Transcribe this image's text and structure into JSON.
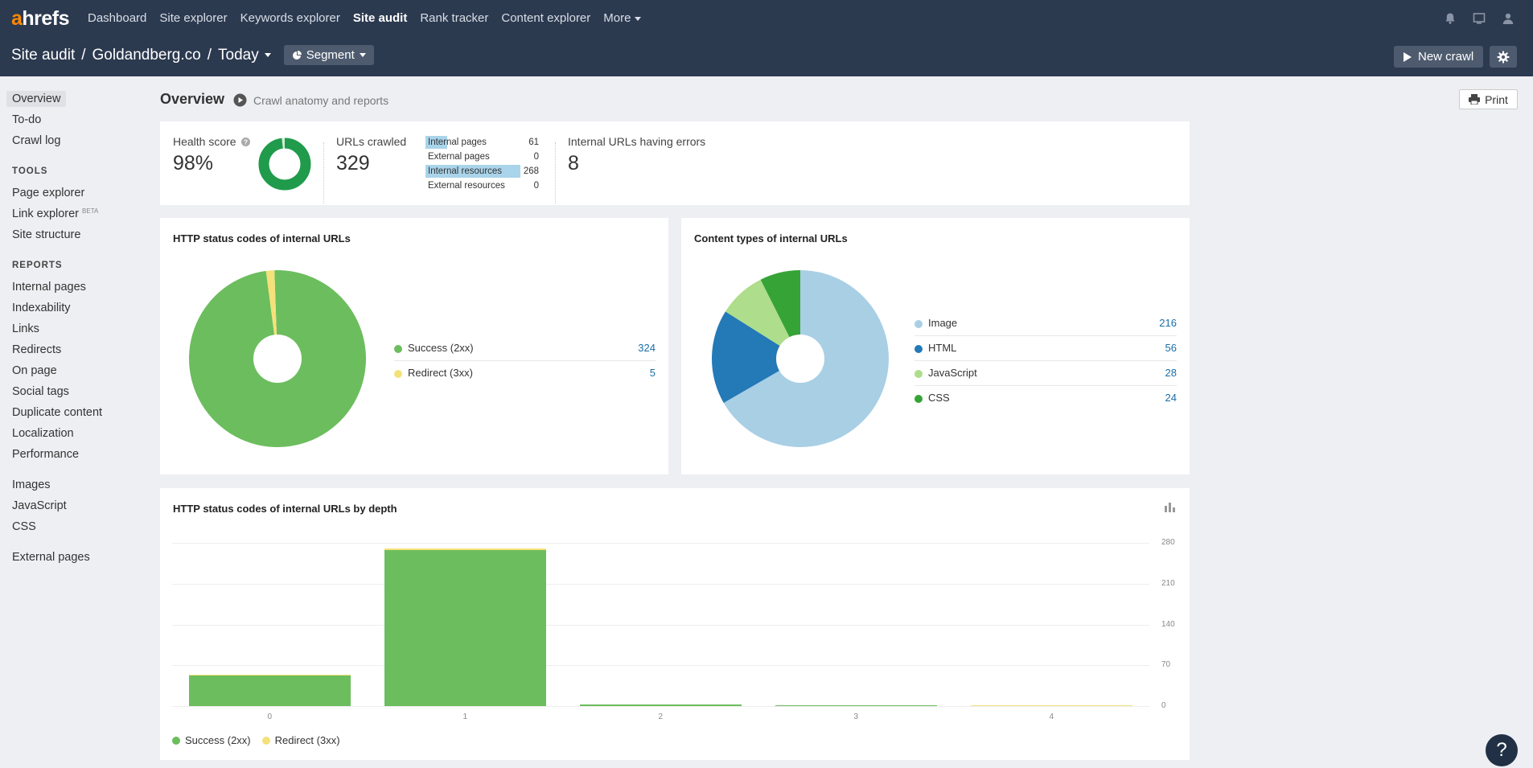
{
  "logo": {
    "a": "a",
    "rest": "hrefs"
  },
  "nav": [
    {
      "label": "Dashboard"
    },
    {
      "label": "Site explorer"
    },
    {
      "label": "Keywords explorer"
    },
    {
      "label": "Site audit",
      "active": true
    },
    {
      "label": "Rank tracker"
    },
    {
      "label": "Content explorer"
    },
    {
      "label": "More"
    }
  ],
  "breadcrumb": {
    "section": "Site audit",
    "project": "Goldandberg.co",
    "crawl": "Today"
  },
  "buttons": {
    "segment": "Segment",
    "new_crawl": "New crawl",
    "print": "Print"
  },
  "sidebar": {
    "top": [
      "Overview",
      "To-do",
      "Crawl log"
    ],
    "tools_heading": "TOOLS",
    "tools": [
      "Page explorer",
      "Link explorer",
      "Site structure"
    ],
    "beta": "BETA",
    "reports_heading": "REPORTS",
    "reports": [
      "Internal pages",
      "Indexability",
      "Links",
      "Redirects",
      "On page",
      "Social tags",
      "Duplicate content",
      "Localization",
      "Performance"
    ],
    "resources": [
      "Images",
      "JavaScript",
      "CSS"
    ],
    "external": [
      "External pages"
    ]
  },
  "overview": {
    "title": "Overview",
    "subtitle": "Crawl anatomy and reports"
  },
  "stats": {
    "health_label": "Health score",
    "health_value": "98%",
    "health_fraction": 0.98,
    "urls_label": "URLs crawled",
    "urls_value": "329",
    "breakdown": [
      {
        "label": "Internal pages",
        "value": "61",
        "fill": 0.185
      },
      {
        "label": "External pages",
        "value": "0",
        "fill": 0
      },
      {
        "label": "Internal resources",
        "value": "268",
        "fill": 0.815
      },
      {
        "label": "External resources",
        "value": "0",
        "fill": 0
      }
    ],
    "errors_label": "Internal URLs having errors",
    "errors_value": "8"
  },
  "http_status": {
    "title": "HTTP status codes of internal URLs",
    "legend": [
      {
        "label": "Success (2xx)",
        "value": "324",
        "color": "#6cbd5e"
      },
      {
        "label": "Redirect (3xx)",
        "value": "5",
        "color": "#f5e17a"
      }
    ]
  },
  "content_types": {
    "title": "Content types of internal URLs",
    "legend": [
      {
        "label": "Image",
        "value": "216",
        "color": "#a9cfe5"
      },
      {
        "label": "HTML",
        "value": "56",
        "color": "#2479b7"
      },
      {
        "label": "JavaScript",
        "value": "28",
        "color": "#aedd8b"
      },
      {
        "label": "CSS",
        "value": "24",
        "color": "#36a336"
      }
    ]
  },
  "depth_chart": {
    "title": "HTTP status codes of internal URLs by depth",
    "legend": [
      {
        "label": "Success (2xx)",
        "color": "#6cbd5e"
      },
      {
        "label": "Redirect (3xx)",
        "color": "#f5e17a"
      }
    ]
  },
  "chart_data": [
    {
      "type": "pie",
      "title": "HTTP status codes of internal URLs",
      "categories": [
        "Success (2xx)",
        "Redirect (3xx)"
      ],
      "values": [
        324,
        5
      ],
      "colors": [
        "#6cbd5e",
        "#f5e17a"
      ]
    },
    {
      "type": "pie",
      "title": "Content types of internal URLs",
      "categories": [
        "Image",
        "HTML",
        "JavaScript",
        "CSS"
      ],
      "values": [
        216,
        56,
        28,
        24
      ],
      "colors": [
        "#a9cfe5",
        "#2479b7",
        "#aedd8b",
        "#36a336"
      ]
    },
    {
      "type": "bar",
      "stacked": true,
      "title": "HTTP status codes of internal URLs by depth",
      "categories": [
        "0",
        "1",
        "2",
        "3",
        "4"
      ],
      "series": [
        {
          "name": "Success (2xx)",
          "values": [
            52,
            268,
            3,
            2,
            1
          ],
          "color": "#6cbd5e"
        },
        {
          "name": "Redirect (3xx)",
          "values": [
            2,
            2,
            0,
            0,
            1
          ],
          "color": "#f5e17a"
        }
      ],
      "yticks": [
        "280",
        "210",
        "140",
        "70",
        "0"
      ],
      "ylim": [
        0,
        280
      ],
      "grid": true
    }
  ],
  "help": "?"
}
